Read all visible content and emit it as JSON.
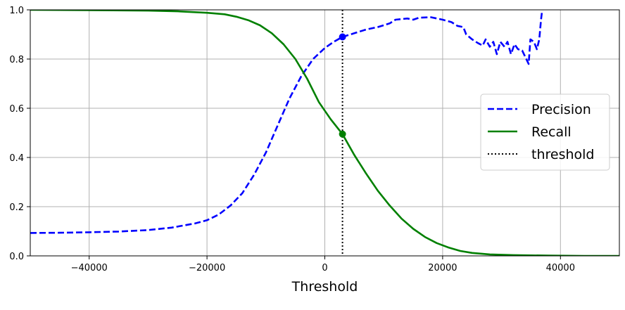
{
  "chart_data": {
    "type": "line",
    "title": "",
    "xlabel": "Threshold",
    "ylabel": "",
    "xlim": [
      -50000,
      50000
    ],
    "ylim": [
      0,
      1
    ],
    "x_ticks": [
      -40000,
      -20000,
      0,
      20000,
      40000
    ],
    "x_tick_labels": [
      "−40000",
      "−20000",
      "0",
      "20000",
      "40000"
    ],
    "y_ticks": [
      0.0,
      0.2,
      0.4,
      0.6,
      0.8,
      1.0
    ],
    "y_tick_labels": [
      "0.0",
      "0.2",
      "0.4",
      "0.6",
      "0.8",
      "1.0"
    ],
    "grid": true,
    "legend_position": "center-right",
    "series": [
      {
        "name": "Precision",
        "color": "#0000ff",
        "style": "dashed",
        "points": [
          [
            -50000,
            0.093
          ],
          [
            -45000,
            0.094
          ],
          [
            -40000,
            0.096
          ],
          [
            -35000,
            0.099
          ],
          [
            -30000,
            0.105
          ],
          [
            -26000,
            0.115
          ],
          [
            -22000,
            0.132
          ],
          [
            -20000,
            0.145
          ],
          [
            -18000,
            0.168
          ],
          [
            -16000,
            0.205
          ],
          [
            -14000,
            0.255
          ],
          [
            -12000,
            0.33
          ],
          [
            -10000,
            0.42
          ],
          [
            -8000,
            0.53
          ],
          [
            -6000,
            0.64
          ],
          [
            -4000,
            0.73
          ],
          [
            -2000,
            0.8
          ],
          [
            0,
            0.845
          ],
          [
            1500,
            0.87
          ],
          [
            3000,
            0.89
          ],
          [
            5000,
            0.905
          ],
          [
            7000,
            0.92
          ],
          [
            9000,
            0.93
          ],
          [
            11000,
            0.945
          ],
          [
            12000,
            0.96
          ],
          [
            14000,
            0.965
          ],
          [
            15000,
            0.96
          ],
          [
            16000,
            0.968
          ],
          [
            18000,
            0.97
          ],
          [
            20000,
            0.96
          ],
          [
            21500,
            0.95
          ],
          [
            22500,
            0.935
          ],
          [
            23500,
            0.93
          ],
          [
            24000,
            0.9
          ],
          [
            25000,
            0.88
          ],
          [
            26000,
            0.865
          ],
          [
            26800,
            0.855
          ],
          [
            27300,
            0.88
          ],
          [
            28000,
            0.85
          ],
          [
            28600,
            0.87
          ],
          [
            29200,
            0.82
          ],
          [
            29800,
            0.87
          ],
          [
            30500,
            0.85
          ],
          [
            31000,
            0.87
          ],
          [
            31600,
            0.82
          ],
          [
            32200,
            0.86
          ],
          [
            32800,
            0.84
          ],
          [
            33500,
            0.835
          ],
          [
            34200,
            0.8
          ],
          [
            34600,
            0.78
          ],
          [
            34900,
            0.88
          ],
          [
            35500,
            0.87
          ],
          [
            36000,
            0.84
          ],
          [
            36400,
            0.88
          ],
          [
            36700,
            0.96
          ],
          [
            37000,
            1.02
          ]
        ]
      },
      {
        "name": "Recall",
        "color": "#008000",
        "style": "solid",
        "points": [
          [
            -50000,
            1.0
          ],
          [
            -40000,
            0.999
          ],
          [
            -30000,
            0.997
          ],
          [
            -25000,
            0.994
          ],
          [
            -20000,
            0.988
          ],
          [
            -17000,
            0.982
          ],
          [
            -15000,
            0.972
          ],
          [
            -13000,
            0.958
          ],
          [
            -11000,
            0.937
          ],
          [
            -9000,
            0.905
          ],
          [
            -7000,
            0.86
          ],
          [
            -5000,
            0.8
          ],
          [
            -3000,
            0.72
          ],
          [
            -1000,
            0.625
          ],
          [
            1000,
            0.555
          ],
          [
            3000,
            0.495
          ],
          [
            5000,
            0.41
          ],
          [
            7000,
            0.335
          ],
          [
            9000,
            0.265
          ],
          [
            11000,
            0.205
          ],
          [
            13000,
            0.152
          ],
          [
            15000,
            0.11
          ],
          [
            17000,
            0.077
          ],
          [
            19000,
            0.052
          ],
          [
            21000,
            0.034
          ],
          [
            23000,
            0.02
          ],
          [
            25000,
            0.012
          ],
          [
            28000,
            0.006
          ],
          [
            32000,
            0.003
          ],
          [
            38000,
            0.001
          ],
          [
            44000,
            0.0
          ],
          [
            50000,
            0.0
          ]
        ]
      },
      {
        "name": "threshold",
        "color": "#000000",
        "style": "dotted",
        "x": 3000
      }
    ],
    "markers": [
      {
        "x": 3000,
        "y": 0.89,
        "color": "#0000ff"
      },
      {
        "x": 3000,
        "y": 0.495,
        "color": "#008000"
      }
    ]
  }
}
